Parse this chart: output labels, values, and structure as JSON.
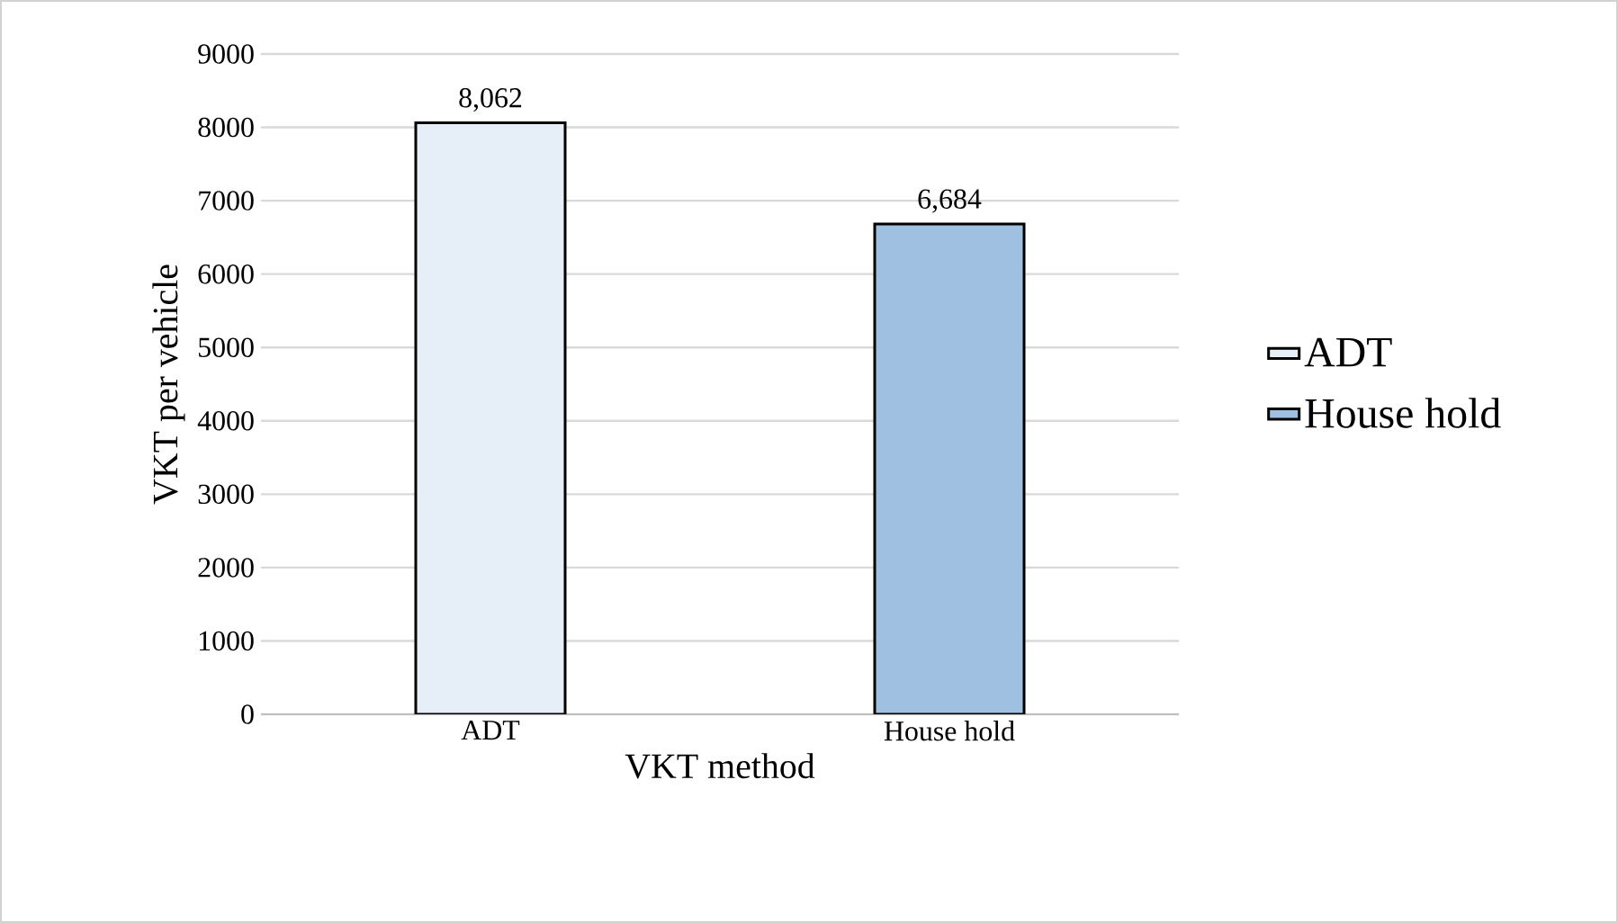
{
  "chart_data": {
    "type": "bar",
    "xlabel": "VKT method",
    "ylabel": "VKT per vehicle",
    "categories": [
      "ADT",
      "House hold"
    ],
    "series": [
      {
        "name": "ADT",
        "color": "#e6eff8",
        "values": [
          8062,
          null
        ],
        "value_labels": [
          "8,062",
          null
        ]
      },
      {
        "name": "House hold",
        "color": "#9fc0e0",
        "values": [
          null,
          6684
        ],
        "value_labels": [
          null,
          "6,684"
        ]
      }
    ],
    "ylim": [
      0,
      9000
    ],
    "yticks": [
      0,
      1000,
      2000,
      3000,
      4000,
      5000,
      6000,
      7000,
      8000,
      9000
    ],
    "grid": "y",
    "legend": "right"
  }
}
